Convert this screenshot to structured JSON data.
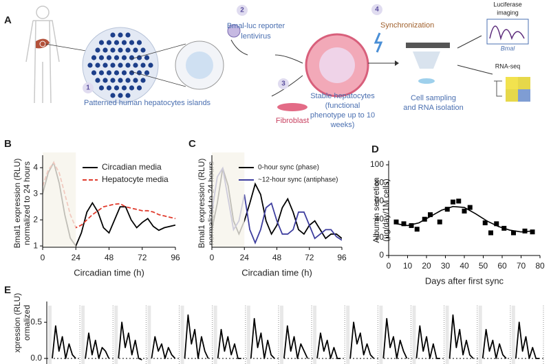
{
  "panel_a": {
    "label": "A",
    "steps": [
      "1",
      "2",
      "3",
      "4"
    ],
    "islands": "Patterned human hepatocytes islands",
    "reporter": [
      "Bmal-luc reporter",
      "lentivirus"
    ],
    "fibroblast": "Fibroblast",
    "stable": [
      "Stable hepatocytes",
      "(functional",
      "phenotype up to 10",
      "weeks)"
    ],
    "sync": "Synchronization",
    "sampling": [
      "Cell sampling",
      "and RNA isolation"
    ],
    "luciferase": [
      "Luciferase",
      "imaging"
    ],
    "bmal": "Bmal",
    "rnaseq": "RNA-seq"
  },
  "chart_data": [
    {
      "panel": "B",
      "type": "line",
      "xlabel": "Circadian time (h)",
      "ylabel": [
        "Bmal1 expression (RLU)",
        "normalized to 24 hours"
      ],
      "x": [
        0,
        4,
        8,
        12,
        16,
        20,
        24,
        28,
        32,
        36,
        40,
        44,
        48,
        52,
        56,
        60,
        64,
        68,
        72,
        76,
        80,
        84,
        88,
        92,
        96
      ],
      "xlim": [
        0,
        96
      ],
      "xticks": [
        0,
        24,
        48,
        72,
        96
      ],
      "ylim": [
        0.95,
        4.32
      ],
      "yticks": [
        1,
        2,
        3,
        4
      ],
      "shaded_region": [
        0,
        24
      ],
      "legend": "top-right",
      "series": [
        {
          "name": "Circadian media",
          "color": "#000000",
          "dash": "solid",
          "values": [
            3.0,
            3.8,
            4.2,
            3.4,
            2.2,
            1.3,
            1.0,
            1.5,
            2.3,
            2.65,
            2.3,
            1.7,
            1.5,
            2.0,
            2.5,
            2.5,
            2.0,
            1.7,
            1.9,
            2.05,
            1.75,
            1.6,
            1.7,
            1.75,
            1.8
          ]
        },
        {
          "name": "Hepatocyte media",
          "color": "#e03a2c",
          "dash": "dashed",
          "values": [
            3.3,
            3.9,
            4.2,
            3.8,
            3.0,
            2.2,
            1.7,
            1.8,
            2.0,
            2.2,
            2.35,
            2.5,
            2.55,
            2.6,
            2.62,
            2.5,
            2.45,
            2.4,
            2.35,
            2.35,
            2.3,
            2.2,
            2.15,
            2.1,
            2.05
          ]
        }
      ]
    },
    {
      "panel": "C",
      "type": "line",
      "xlabel": "Circadian time (h)",
      "ylabel": [
        "Bmal1 expression (RLU)",
        "normalized to 24 hours"
      ],
      "x": [
        0,
        4,
        8,
        12,
        16,
        20,
        24,
        28,
        32,
        36,
        40,
        44,
        48,
        52,
        56,
        60,
        64,
        68,
        72,
        76,
        80,
        84,
        88,
        92,
        96
      ],
      "xlim": [
        0,
        96
      ],
      "xticks": [
        0,
        24,
        48,
        72,
        96
      ],
      "ylim": [
        0.8,
        1.8
      ],
      "yticks": [],
      "shaded_region": [
        0,
        24
      ],
      "legend": "top-right",
      "series": [
        {
          "name": "0-hour sync (phase)",
          "color": "#000000",
          "dash": "solid",
          "values": [
            1.0,
            1.3,
            1.7,
            1.5,
            1.1,
            0.95,
            1.1,
            1.3,
            1.52,
            1.4,
            1.1,
            0.95,
            1.05,
            1.25,
            1.35,
            1.2,
            1.0,
            0.95,
            1.05,
            1.1,
            1.0,
            0.9,
            0.95,
            0.95,
            0.9
          ]
        },
        {
          "name": "~12-hour sync (antiphase)",
          "color": "#3d3d9e",
          "dash": "solid",
          "values": [
            1.2,
            1.6,
            1.7,
            1.35,
            1.0,
            1.1,
            1.4,
            1.0,
            0.85,
            1.0,
            1.25,
            1.3,
            1.1,
            0.95,
            0.95,
            1.0,
            1.2,
            1.2,
            1.05,
            0.9,
            0.95,
            1.0,
            1.0,
            0.92,
            0.88
          ]
        }
      ]
    },
    {
      "panel": "D",
      "type": "scatter",
      "xlabel": "Days after first sync",
      "ylabel": [
        "Albumin secretion",
        "(µg/day/1M cells)"
      ],
      "xlim": [
        0,
        80
      ],
      "xticks": [
        0,
        10,
        20,
        30,
        40,
        50,
        60,
        70,
        80
      ],
      "ylim": [
        0,
        100
      ],
      "yticks": [
        0,
        20,
        40,
        60,
        80,
        100
      ],
      "color": "#000000",
      "x": [
        4,
        8,
        12,
        15,
        19,
        22,
        27,
        31,
        34,
        37,
        40,
        43,
        51,
        54,
        57,
        61,
        66,
        72,
        76
      ],
      "values": [
        37,
        35,
        33,
        29,
        40,
        45,
        37,
        51,
        59,
        60,
        49,
        53,
        36,
        25,
        35,
        30,
        25,
        27,
        26
      ],
      "fit": {
        "x": [
          4,
          10,
          16,
          22,
          28,
          34,
          40,
          46,
          52,
          58,
          64,
          70,
          76
        ],
        "values": [
          35,
          33,
          36,
          43,
          50,
          54,
          53,
          46,
          38,
          32,
          28,
          26,
          27
        ]
      }
    },
    {
      "panel": "E",
      "type": "panels",
      "ylabel": [
        "xpression (RLU)",
        "ormalized"
      ],
      "ylim": [
        -0.22,
        0.73
      ],
      "yticks": [
        {
          "value": 0.5,
          "label": "0.5"
        },
        {
          "value": 0,
          "label": "0.0"
        }
      ],
      "color": "#000000",
      "zero_line": true,
      "panels": [
        [
          0.0,
          0.45,
          0.1,
          0.3,
          0.0,
          0.2,
          0.05,
          0.0
        ],
        [
          0.0,
          0.35,
          0.05,
          0.25,
          0.0,
          0.15,
          0.1,
          0.0
        ],
        [
          0.0,
          0.5,
          0.15,
          0.35,
          0.05,
          0.25,
          0.0,
          -0.02
        ],
        [
          0.0,
          0.3,
          0.1,
          0.2,
          0.0,
          0.15,
          0.05,
          0.0
        ],
        [
          0.0,
          0.6,
          0.2,
          0.4,
          0.0,
          0.3,
          0.1,
          0.0
        ],
        [
          0.0,
          0.4,
          0.1,
          0.3,
          0.05,
          0.2,
          0.0,
          0.0
        ],
        [
          0.0,
          0.55,
          0.15,
          0.35,
          0.0,
          0.25,
          0.05,
          0.0
        ],
        [
          0.0,
          0.45,
          0.1,
          0.3,
          0.0,
          0.2,
          0.1,
          0.0
        ],
        [
          0.0,
          0.35,
          0.1,
          0.25,
          0.0,
          0.15,
          0.0,
          0.0
        ],
        [
          0.0,
          0.5,
          0.2,
          0.35,
          0.05,
          0.2,
          0.05,
          0.0
        ],
        [
          0.0,
          0.55,
          0.15,
          0.3,
          0.0,
          0.25,
          0.1,
          0.0
        ],
        [
          0.0,
          0.45,
          0.1,
          0.3,
          0.0,
          0.2,
          0.0,
          0.0
        ],
        [
          0.0,
          0.6,
          0.15,
          0.4,
          0.05,
          0.25,
          0.05,
          0.0
        ],
        [
          0.0,
          0.4,
          0.1,
          0.25,
          0.0,
          0.2,
          0.05,
          0.0
        ],
        [
          0.0,
          0.5,
          0.1,
          0.3,
          0.0,
          0.15,
          0.0,
          0.0
        ]
      ]
    }
  ]
}
